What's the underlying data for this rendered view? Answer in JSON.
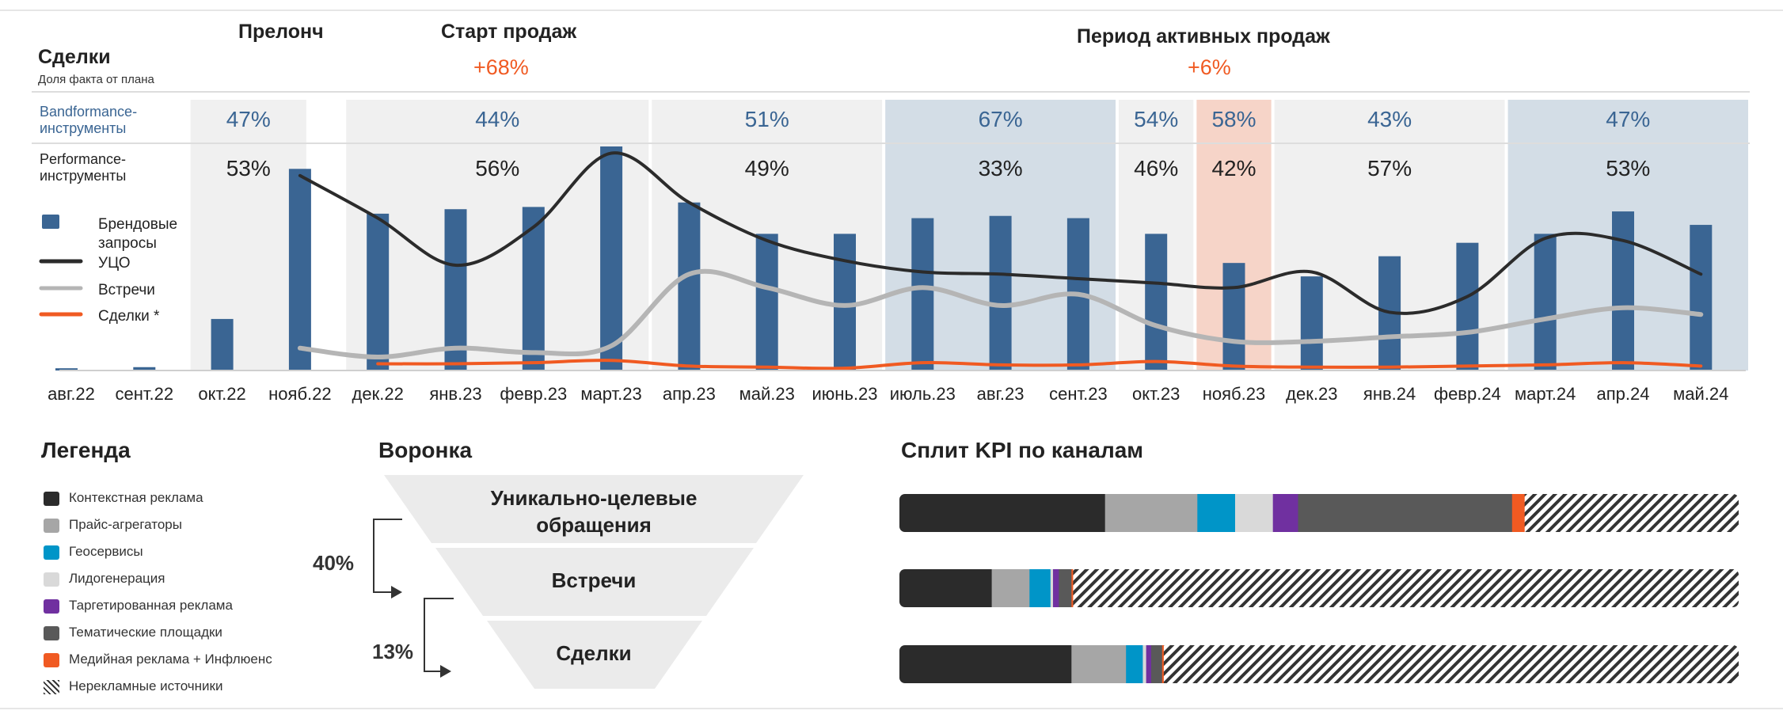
{
  "header": {
    "deals_title": "Сделки",
    "deals_subtitle": "Доля факта от плана",
    "row1_label_a": "Bandformance-",
    "row1_label_b": "инструменты",
    "row2_label_a": "Performance-",
    "row2_label_b": "инструменты"
  },
  "phases": [
    {
      "title": "Прелонч",
      "change": ""
    },
    {
      "title": "Старт продаж",
      "change": "+68%"
    },
    {
      "title": "Период активных продаж",
      "change": "+6%"
    }
  ],
  "colors": {
    "bar": "#3a6593",
    "uco": "#2b2b2b",
    "meetings": "#b5b5b5",
    "deals": "#f05a22",
    "band_grey": "#f0f0f0",
    "band_blue": "#d3dde6",
    "band_orange": "#f6d4c8",
    "pct_blue": "#3a6593"
  },
  "chart_data": {
    "type": "bar",
    "categories": [
      "авг.22",
      "сент.22",
      "окт.22",
      "нояб.22",
      "дек.22",
      "янв.23",
      "февр.23",
      "март.23",
      "апр.23",
      "май.23",
      "июнь.23",
      "июль.23",
      "авг.23",
      "сент.23",
      "окт.23",
      "нояб.23",
      "дек.23",
      "янв.24",
      "февр.24",
      "март.24",
      "апр.24",
      "май.24"
    ],
    "series": [
      {
        "name": "Брендовые запросы",
        "type": "bar",
        "values": [
          1,
          1.5,
          23,
          90,
          70,
          72,
          73,
          100,
          75,
          61,
          61,
          68,
          69,
          68,
          61,
          48,
          42,
          51,
          57,
          61,
          71,
          65
        ]
      },
      {
        "name": "УЦО",
        "type": "line",
        "values": [
          null,
          null,
          null,
          87,
          68,
          47,
          64,
          97,
          75,
          58,
          49,
          44,
          43,
          41,
          39,
          37,
          44,
          26,
          33,
          59,
          58,
          43
        ]
      },
      {
        "name": "Встречи",
        "type": "line",
        "values": [
          null,
          null,
          null,
          10,
          6,
          10,
          8,
          11,
          43,
          37,
          29,
          37,
          29,
          34,
          20,
          13,
          13,
          15,
          17,
          23,
          28,
          25
        ]
      },
      {
        "name": "Сделки *",
        "type": "line",
        "values": [
          null,
          null,
          null,
          null,
          3,
          3,
          3.5,
          4.5,
          2,
          1.5,
          1,
          3.5,
          2.5,
          2.5,
          4,
          2,
          1.5,
          1.5,
          2,
          2.5,
          3.5,
          2
        ]
      }
    ],
    "ylim": [
      0,
      100
    ],
    "bands": [
      {
        "from": 2,
        "to": 3,
        "color": "grey",
        "bandformance": "47%",
        "performance": "53%"
      },
      {
        "from": 4,
        "to": 7,
        "color": "grey",
        "bandformance": "44%",
        "performance": "56%"
      },
      {
        "from": 8,
        "to": 10,
        "color": "grey",
        "bandformance": "51%",
        "performance": "49%"
      },
      {
        "from": 11,
        "to": 13,
        "color": "blue",
        "bandformance": "67%",
        "performance": "33%"
      },
      {
        "from": 14,
        "to": 14,
        "color": "grey",
        "bandformance": "54%",
        "performance": "46%"
      },
      {
        "from": 15,
        "to": 15,
        "color": "orange",
        "bandformance": "58%",
        "performance": "42%"
      },
      {
        "from": 16,
        "to": 18,
        "color": "grey",
        "bandformance": "43%",
        "performance": "57%"
      },
      {
        "from": 19,
        "to": 21,
        "color": "blue",
        "bandformance": "47%",
        "performance": "53%"
      }
    ],
    "legend": [
      {
        "label_a": "Брендовые",
        "label_b": "запросы",
        "kind": "bar"
      },
      {
        "label_a": "УЦО",
        "label_b": "",
        "kind": "uco"
      },
      {
        "label_a": "Встречи",
        "label_b": "",
        "kind": "meetings"
      },
      {
        "label_a": "Сделки *",
        "label_b": "",
        "kind": "deals"
      }
    ]
  },
  "legend": {
    "title": "Легенда",
    "items": [
      {
        "label": "Контекстная реклама",
        "color": "#2b2b2b"
      },
      {
        "label": "Прайс-агрегаторы",
        "color": "#a6a6a6"
      },
      {
        "label": "Геосервисы",
        "color": "#0095c8"
      },
      {
        "label": "Лидогенерация",
        "color": "#d9d9d9"
      },
      {
        "label": "Таргетированная реклама",
        "color": "#7030a0"
      },
      {
        "label": "Тематические площадки",
        "color": "#595959"
      },
      {
        "label": "Медийная реклама + Инфлюенс",
        "color": "#f05a22"
      },
      {
        "label": "Нерекламные источники",
        "color": "hatch"
      }
    ]
  },
  "funnel": {
    "title": "Воронка",
    "levels": [
      {
        "label_a": "Уникально-целевые",
        "label_b": "обращения"
      },
      {
        "label_a": "Встречи",
        "label_b": ""
      },
      {
        "label_a": "Сделки",
        "label_b": ""
      }
    ],
    "conversions": [
      "40%",
      "13%"
    ]
  },
  "kpi_split": {
    "title": "Сплит KPI по каналам",
    "rows": [
      {
        "name": "Уникально-целевые обращения",
        "segments": [
          {
            "channel": "Контекстная реклама",
            "share": 24.5,
            "color": "#2b2b2b"
          },
          {
            "channel": "Прайс-агрегаторы",
            "share": 11,
            "color": "#a6a6a6"
          },
          {
            "channel": "Геосервисы",
            "share": 4.5,
            "color": "#0095c8"
          },
          {
            "channel": "Лидогенерация",
            "share": 4.5,
            "color": "#d9d9d9"
          },
          {
            "channel": "Таргетированная реклама",
            "share": 3,
            "color": "#7030a0"
          },
          {
            "channel": "Тематические площадки",
            "share": 25.5,
            "color": "#595959"
          },
          {
            "channel": "Медийная реклама + Инфлюенс",
            "share": 1.5,
            "color": "#f05a22"
          },
          {
            "channel": "Нерекламные источники",
            "share": 25.5,
            "color": "hatch"
          }
        ]
      },
      {
        "name": "Встречи",
        "segments": [
          {
            "channel": "Контекстная реклама",
            "share": 11,
            "color": "#2b2b2b"
          },
          {
            "channel": "Прайс-агрегаторы",
            "share": 4.5,
            "color": "#a6a6a6"
          },
          {
            "channel": "Геосервисы",
            "share": 2.5,
            "color": "#0095c8"
          },
          {
            "channel": "Лидогенерация",
            "share": 0.3,
            "color": "#d9d9d9"
          },
          {
            "channel": "Таргетированная реклама",
            "share": 0.7,
            "color": "#7030a0"
          },
          {
            "channel": "Тематические площадки",
            "share": 1.5,
            "color": "#595959"
          },
          {
            "channel": "Медийная реклама + Инфлюенс",
            "share": 0.2,
            "color": "#f05a22"
          },
          {
            "channel": "Нерекламные источники",
            "share": 79.3,
            "color": "hatch"
          }
        ]
      },
      {
        "name": "Сделки",
        "segments": [
          {
            "channel": "Контекстная реклама",
            "share": 20.5,
            "color": "#2b2b2b"
          },
          {
            "channel": "Прайс-агрегаторы",
            "share": 6.5,
            "color": "#a6a6a6"
          },
          {
            "channel": "Геосервисы",
            "share": 2,
            "color": "#0095c8"
          },
          {
            "channel": "Лидогенерация",
            "share": 0.4,
            "color": "#d9d9d9"
          },
          {
            "channel": "Таргетированная реклама",
            "share": 0.6,
            "color": "#7030a0"
          },
          {
            "channel": "Тематические площадки",
            "share": 1.3,
            "color": "#595959"
          },
          {
            "channel": "Медийная реклама + Инфлюенс",
            "share": 0.2,
            "color": "#f05a22"
          },
          {
            "channel": "Нерекламные источники",
            "share": 68.5,
            "color": "hatch"
          }
        ]
      }
    ]
  }
}
